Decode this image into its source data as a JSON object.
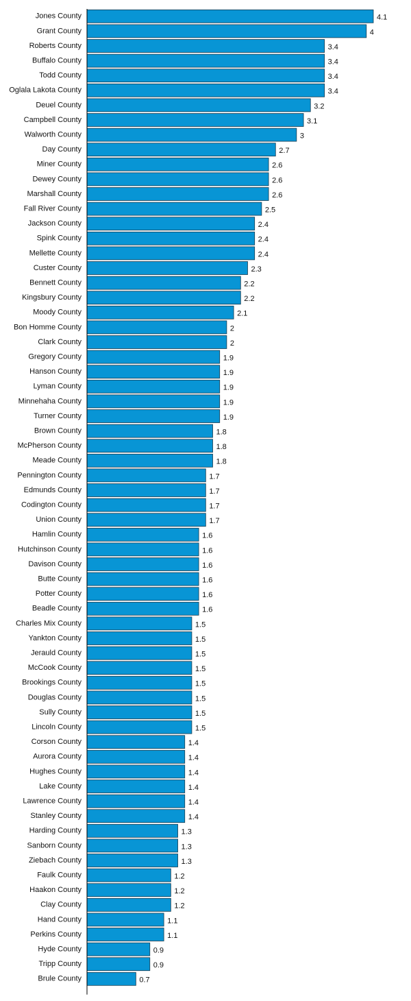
{
  "chart_data": {
    "type": "bar",
    "orientation": "horizontal",
    "bar_color": "#0895d5",
    "bar_edge_color": "#1a3a4d",
    "axis_color": "#000000",
    "xlim": [
      0,
      4.1
    ],
    "grid": false,
    "categories": [
      "Jones County",
      "Grant County",
      "Roberts County",
      "Buffalo County",
      "Todd County",
      "Oglala Lakota County",
      "Deuel County",
      "Campbell County",
      "Walworth County",
      "Day County",
      "Miner County",
      "Dewey County",
      "Marshall County",
      "Fall River County",
      "Jackson County",
      "Spink County",
      "Mellette County",
      "Custer County",
      "Bennett County",
      "Kingsbury County",
      "Moody County",
      "Bon Homme County",
      "Clark County",
      "Gregory County",
      "Hanson County",
      "Lyman County",
      "Minnehaha County",
      "Turner County",
      "Brown County",
      "McPherson County",
      "Meade County",
      "Pennington County",
      "Edmunds County",
      "Codington County",
      "Union County",
      "Hamlin County",
      "Hutchinson County",
      "Davison County",
      "Butte County",
      "Potter County",
      "Beadle County",
      "Charles Mix County",
      "Yankton County",
      "Jerauld County",
      "McCook County",
      "Brookings County",
      "Douglas County",
      "Sully County",
      "Lincoln County",
      "Corson County",
      "Aurora County",
      "Hughes County",
      "Lake County",
      "Lawrence County",
      "Stanley County",
      "Harding County",
      "Sanborn County",
      "Ziebach County",
      "Faulk County",
      "Haakon County",
      "Clay County",
      "Hand County",
      "Perkins County",
      "Hyde County",
      "Tripp County",
      "Brule County"
    ],
    "values": [
      4.1,
      4,
      3.4,
      3.4,
      3.4,
      3.4,
      3.2,
      3.1,
      3,
      2.7,
      2.6,
      2.6,
      2.6,
      2.5,
      2.4,
      2.4,
      2.4,
      2.3,
      2.2,
      2.2,
      2.1,
      2,
      2,
      1.9,
      1.9,
      1.9,
      1.9,
      1.9,
      1.8,
      1.8,
      1.8,
      1.7,
      1.7,
      1.7,
      1.7,
      1.6,
      1.6,
      1.6,
      1.6,
      1.6,
      1.6,
      1.5,
      1.5,
      1.5,
      1.5,
      1.5,
      1.5,
      1.5,
      1.5,
      1.4,
      1.4,
      1.4,
      1.4,
      1.4,
      1.4,
      1.3,
      1.3,
      1.3,
      1.2,
      1.2,
      1.2,
      1.1,
      1.1,
      0.9,
      0.9,
      0.7
    ],
    "title": "",
    "xlabel": "",
    "ylabel": ""
  }
}
